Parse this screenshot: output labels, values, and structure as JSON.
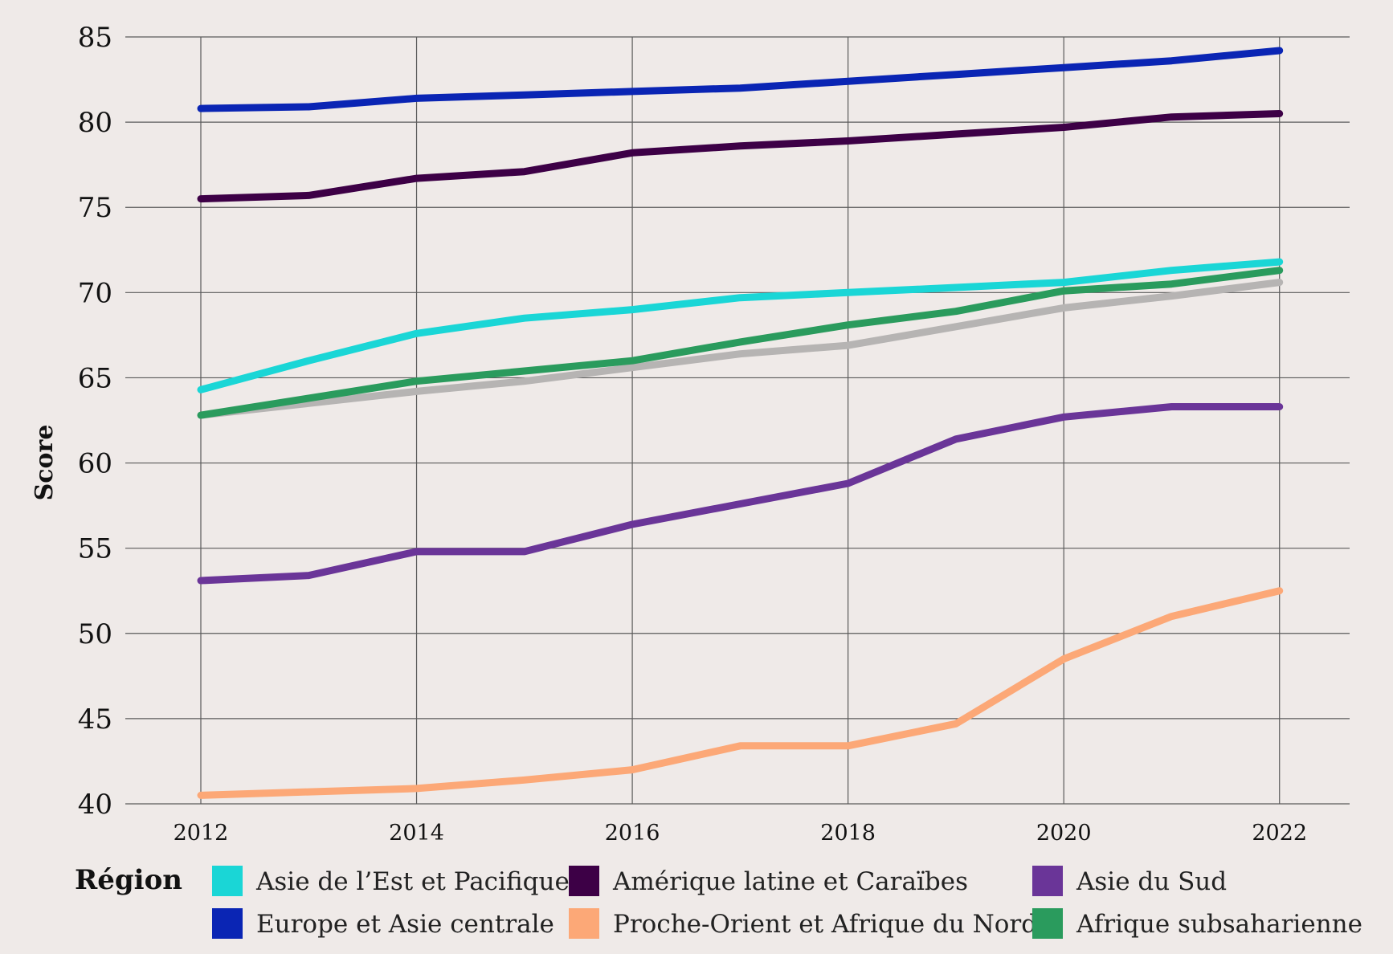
{
  "chart_data": {
    "type": "line",
    "title": "",
    "xlabel": "",
    "ylabel": "Score",
    "xlim": [
      2011.3,
      2022.65
    ],
    "ylim": [
      40,
      85
    ],
    "xticks": [
      2012,
      2014,
      2016,
      2018,
      2020,
      2022
    ],
    "yticks": [
      40,
      45,
      50,
      55,
      60,
      65,
      70,
      75,
      80,
      85
    ],
    "grid": true,
    "x": [
      2012,
      2013,
      2014,
      2015,
      2016,
      2017,
      2018,
      2019,
      2020,
      2021,
      2022
    ],
    "legend_title": "Région",
    "legend_position": "bottom",
    "series": [
      {
        "name": "",
        "color": "#b6b4b3",
        "in_legend": false,
        "values": [
          62.8,
          63.5,
          64.2,
          64.8,
          65.6,
          66.4,
          66.9,
          68.0,
          69.1,
          69.8,
          70.6
        ]
      },
      {
        "name": "Asie de l’Est et Pacifique",
        "color": "#1ad6d6",
        "in_legend": true,
        "values": [
          64.3,
          66.0,
          67.6,
          68.5,
          69.0,
          69.7,
          70.0,
          70.3,
          70.6,
          71.3,
          71.8
        ]
      },
      {
        "name": "Afrique subsaharienne",
        "color": "#2a9b5d",
        "in_legend": true,
        "values": [
          62.8,
          63.8,
          64.8,
          65.4,
          66.0,
          67.1,
          68.1,
          68.9,
          70.1,
          70.5,
          71.3
        ]
      },
      {
        "name": "Amérique latine et Caraïbes",
        "color": "#3d0046",
        "in_legend": true,
        "values": [
          75.5,
          75.7,
          76.7,
          77.1,
          78.2,
          78.6,
          78.9,
          79.3,
          79.7,
          80.3,
          80.5
        ]
      },
      {
        "name": "Europe et Asie centrale",
        "color": "#0a25b4",
        "in_legend": true,
        "values": [
          80.8,
          80.9,
          81.4,
          81.6,
          81.8,
          82.0,
          82.4,
          82.8,
          83.2,
          83.6,
          84.2
        ]
      },
      {
        "name": "Asie du Sud",
        "color": "#6a3598",
        "in_legend": true,
        "values": [
          53.1,
          53.4,
          54.8,
          54.8,
          56.4,
          57.6,
          58.8,
          61.4,
          62.7,
          63.3,
          63.3
        ]
      },
      {
        "name": "Proche-Orient et Afrique du Nord",
        "color": "#fca877",
        "in_legend": true,
        "values": [
          40.5,
          40.7,
          40.9,
          41.4,
          42.0,
          43.4,
          43.4,
          44.7,
          48.5,
          51.0,
          52.5
        ]
      }
    ]
  }
}
